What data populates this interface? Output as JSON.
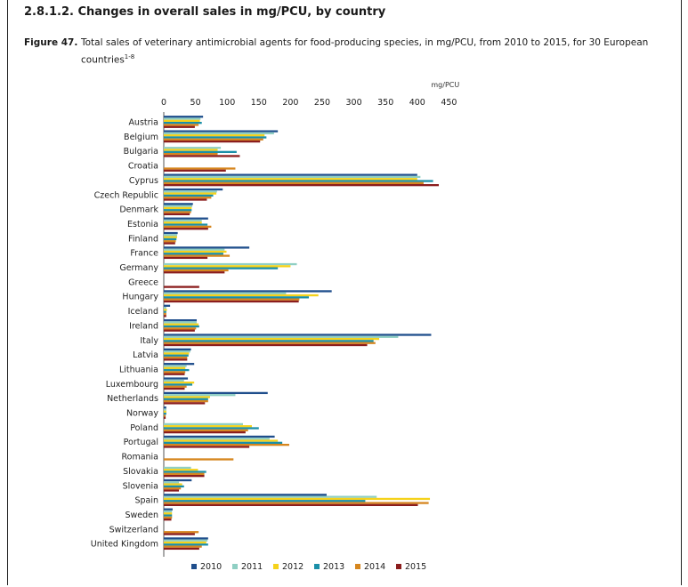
{
  "section": {
    "title": "2.8.1.2. Changes in overall sales in mg/PCU, by country"
  },
  "figure": {
    "label": "Figure 47.",
    "caption": "Total sales of veterinary antimicrobial agents for food-producing species, in mg/PCU, from 2010 to 2015, for 30 European countries",
    "superscript": "1-8"
  },
  "chart_data": {
    "type": "bar",
    "orientation": "horizontal",
    "unit_label": "mg/PCU",
    "xlim": [
      0,
      450
    ],
    "xticks": [
      0,
      50,
      100,
      150,
      200,
      250,
      300,
      350,
      400,
      450
    ],
    "grid": false,
    "legend_position": "bottom",
    "categories": [
      "Austria",
      "Belgium",
      "Bulgaria",
      "Croatia",
      "Cyprus",
      "Czech Republic",
      "Denmark",
      "Estonia",
      "Finland",
      "France",
      "Germany",
      "Greece",
      "Hungary",
      "Iceland",
      "Ireland",
      "Italy",
      "Latvia",
      "Lithuania",
      "Luxembourg",
      "Netherlands",
      "Norway",
      "Poland",
      "Portugal",
      "Romania",
      "Slovakia",
      "Slovenia",
      "Spain",
      "Sweden",
      "Switzerland",
      "United Kingdom"
    ],
    "series": [
      {
        "name": "2010",
        "color": "#1f4e8c",
        "values": [
          62,
          180,
          null,
          null,
          400,
          93,
          46,
          70,
          22,
          135,
          null,
          null,
          265,
          10,
          52,
          422,
          43,
          48,
          38,
          164,
          4,
          null,
          175,
          null,
          null,
          44,
          257,
          14,
          null,
          70
        ]
      },
      {
        "name": "2011",
        "color": "#8fcfc3",
        "values": [
          58,
          174,
          90,
          null,
          405,
          84,
          45,
          60,
          21,
          96,
          210,
          null,
          193,
          4,
          52,
          370,
          42,
          36,
          32,
          113,
          4,
          125,
          167,
          null,
          43,
          24,
          336,
          13,
          null,
          69
        ]
      },
      {
        "name": "2012",
        "color": "#f5d21b",
        "values": [
          57,
          159,
          85,
          null,
          400,
          83,
          44,
          60,
          21,
          99,
          200,
          null,
          244,
          5,
          55,
          340,
          40,
          34,
          48,
          73,
          4,
          139,
          180,
          null,
          54,
          29,
          420,
          13,
          null,
          67
        ]
      },
      {
        "name": "2013",
        "color": "#1a8fa8",
        "values": [
          60,
          162,
          115,
          null,
          425,
          78,
          44,
          69,
          20,
          94,
          180,
          null,
          229,
          4,
          56,
          331,
          39,
          40,
          45,
          70,
          4,
          150,
          187,
          null,
          67,
          32,
          318,
          13,
          null,
          70
        ]
      },
      {
        "name": "2014",
        "color": "#d6861e",
        "values": [
          55,
          157,
          85,
          113,
          410,
          75,
          43,
          75,
          19,
          104,
          102,
          null,
          214,
          4,
          51,
          334,
          37,
          34,
          36,
          70,
          3,
          133,
          198,
          110,
          64,
          27,
          418,
          13,
          55,
          60
        ]
      },
      {
        "name": "2015",
        "color": "#8b1d1d",
        "values": [
          49,
          152,
          120,
          98,
          434,
          68,
          41,
          70,
          18,
          69,
          96,
          56,
          213,
          4,
          49,
          321,
          37,
          33,
          33,
          65,
          3,
          129,
          135,
          null,
          64,
          24,
          401,
          12,
          49,
          56
        ]
      }
    ]
  }
}
